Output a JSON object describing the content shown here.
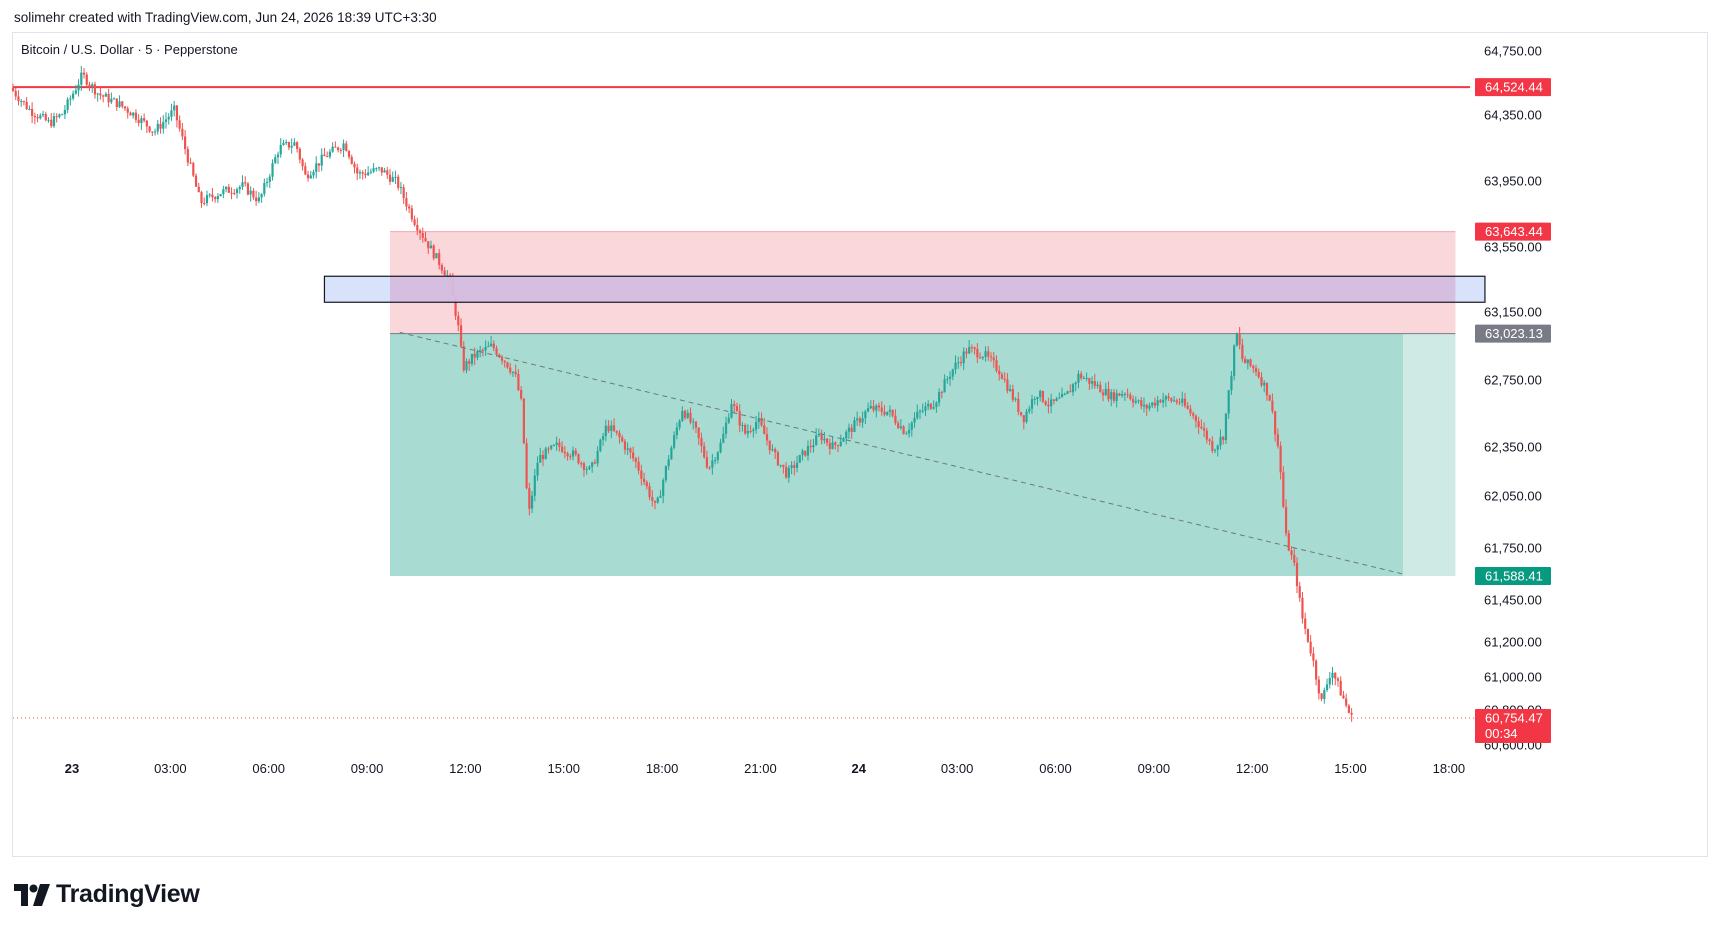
{
  "header": {
    "caption": "solimehr created with TradingView.com, Jun 24, 2026 18:39 UTC+3:30"
  },
  "footer": {
    "brand": "TradingView"
  },
  "colors": {
    "up": "#26a69a",
    "down": "#ef5350",
    "resistance_line": "#f23645",
    "stop_zone": "#f7c9cd",
    "target_zone": "#9fd8cd",
    "target_zone_light": "#cfeae4",
    "zone_box": "#d9e2fb",
    "zone_box_overlap": "#d3bde0",
    "entry_label": "#787b86",
    "target_label": "#089981"
  },
  "chart_data": {
    "type": "candlestick",
    "title": "Bitcoin / U.S. Dollar · 5 · Pepperstone",
    "y_ticks": [
      "64,750.00",
      "64,350.00",
      "63,950.00",
      "63,550.00",
      "63,150.00",
      "62,750.00",
      "62,350.00",
      "62,050.00",
      "61,750.00",
      "61,450.00",
      "61,200.00",
      "61,000.00",
      "60,800.00",
      "60,600.00"
    ],
    "y_tick_values": [
      64750,
      64350,
      63950,
      63550,
      63150,
      62750,
      62350,
      62050,
      61750,
      61450,
      61200,
      61000,
      60800,
      60600
    ],
    "x_ticks": [
      {
        "label": "23",
        "bold": true
      },
      {
        "label": "03:00",
        "bold": false
      },
      {
        "label": "06:00",
        "bold": false
      },
      {
        "label": "09:00",
        "bold": false
      },
      {
        "label": "12:00",
        "bold": false
      },
      {
        "label": "15:00",
        "bold": false
      },
      {
        "label": "18:00",
        "bold": false
      },
      {
        "label": "21:00",
        "bold": false
      },
      {
        "label": "24",
        "bold": true
      },
      {
        "label": "03:00",
        "bold": false
      },
      {
        "label": "06:00",
        "bold": false
      },
      {
        "label": "09:00",
        "bold": false
      },
      {
        "label": "12:00",
        "bold": false
      },
      {
        "label": "15:00",
        "bold": false
      },
      {
        "label": "18:00",
        "bold": false
      }
    ],
    "x_tick_hours": [
      0,
      3,
      6,
      9,
      12,
      15,
      18,
      21,
      24,
      27,
      30,
      33,
      36,
      39,
      42
    ],
    "x_range_hours": [
      -1.8,
      42.4
    ],
    "price_labels": {
      "resistance": "64,524.44",
      "stop": "63,643.44",
      "entry": "63,023.13",
      "target": "61,588.41",
      "last": "60,754.47",
      "countdown": "00:34"
    },
    "levels": {
      "resistance": 64524.44,
      "stop": 63643.44,
      "entry": 63023.13,
      "target": 61588.41,
      "last": 60754.47
    },
    "position": {
      "type": "short",
      "start_hour": 9.7,
      "end_hour": 42.2,
      "exit_hour": 40.6
    },
    "zone_box": {
      "start_hour": 7.7,
      "end_hour": 43.1,
      "top": 63370,
      "bottom": 63210
    },
    "trend_line": {
      "start_hour": 10.0,
      "start_price": 63030,
      "end_hour": 40.6,
      "end_price": 61600
    },
    "price_path": [
      [
        -1.8,
        64520
      ],
      [
        -1.2,
        64380
      ],
      [
        -0.6,
        64300
      ],
      [
        -0.2,
        64360
      ],
      [
        0.4,
        64600
      ],
      [
        0.9,
        64480
      ],
      [
        1.5,
        64420
      ],
      [
        2.0,
        64350
      ],
      [
        2.6,
        64250
      ],
      [
        3.2,
        64380
      ],
      [
        3.6,
        64100
      ],
      [
        4.0,
        63820
      ],
      [
        4.6,
        63880
      ],
      [
        5.3,
        63920
      ],
      [
        5.8,
        63830
      ],
      [
        6.4,
        64150
      ],
      [
        6.9,
        64180
      ],
      [
        7.2,
        63980
      ],
      [
        7.8,
        64100
      ],
      [
        8.4,
        64180
      ],
      [
        8.8,
        63990
      ],
      [
        9.5,
        64020
      ],
      [
        10.0,
        63940
      ],
      [
        10.5,
        63720
      ],
      [
        10.9,
        63580
      ],
      [
        11.3,
        63450
      ],
      [
        11.6,
        63350
      ],
      [
        11.9,
        63020
      ],
      [
        12.0,
        62820
      ],
      [
        12.4,
        62900
      ],
      [
        12.9,
        62950
      ],
      [
        13.3,
        62860
      ],
      [
        13.6,
        62780
      ],
      [
        13.8,
        62600
      ],
      [
        14.0,
        61920
      ],
      [
        14.3,
        62280
      ],
      [
        14.9,
        62360
      ],
      [
        15.4,
        62300
      ],
      [
        15.9,
        62200
      ],
      [
        16.4,
        62480
      ],
      [
        16.8,
        62400
      ],
      [
        17.3,
        62250
      ],
      [
        17.9,
        61970
      ],
      [
        18.3,
        62300
      ],
      [
        18.7,
        62580
      ],
      [
        19.1,
        62450
      ],
      [
        19.5,
        62220
      ],
      [
        19.9,
        62380
      ],
      [
        20.2,
        62620
      ],
      [
        20.6,
        62430
      ],
      [
        21.0,
        62510
      ],
      [
        21.5,
        62300
      ],
      [
        21.9,
        62180
      ],
      [
        22.4,
        62310
      ],
      [
        22.9,
        62420
      ],
      [
        23.3,
        62350
      ],
      [
        23.9,
        62470
      ],
      [
        24.4,
        62580
      ],
      [
        25.0,
        62560
      ],
      [
        25.5,
        62440
      ],
      [
        25.9,
        62550
      ],
      [
        26.4,
        62620
      ],
      [
        26.9,
        62800
      ],
      [
        27.4,
        62930
      ],
      [
        27.9,
        62900
      ],
      [
        28.4,
        62800
      ],
      [
        28.8,
        62640
      ],
      [
        29.1,
        62520
      ],
      [
        29.5,
        62680
      ],
      [
        29.9,
        62600
      ],
      [
        30.4,
        62650
      ],
      [
        30.8,
        62780
      ],
      [
        31.3,
        62720
      ],
      [
        31.8,
        62650
      ],
      [
        32.2,
        62680
      ],
      [
        32.8,
        62580
      ],
      [
        33.3,
        62640
      ],
      [
        33.9,
        62620
      ],
      [
        34.4,
        62510
      ],
      [
        34.9,
        62340
      ],
      [
        35.2,
        62420
      ],
      [
        35.4,
        62720
      ],
      [
        35.6,
        63030
      ],
      [
        35.8,
        62860
      ],
      [
        36.2,
        62810
      ],
      [
        36.6,
        62660
      ],
      [
        36.9,
        62320
      ],
      [
        37.1,
        61820
      ],
      [
        37.4,
        61620
      ],
      [
        37.6,
        61350
      ],
      [
        37.9,
        61130
      ],
      [
        38.2,
        60850
      ],
      [
        38.5,
        61050
      ],
      [
        38.8,
        60900
      ],
      [
        39.1,
        60754
      ]
    ]
  }
}
